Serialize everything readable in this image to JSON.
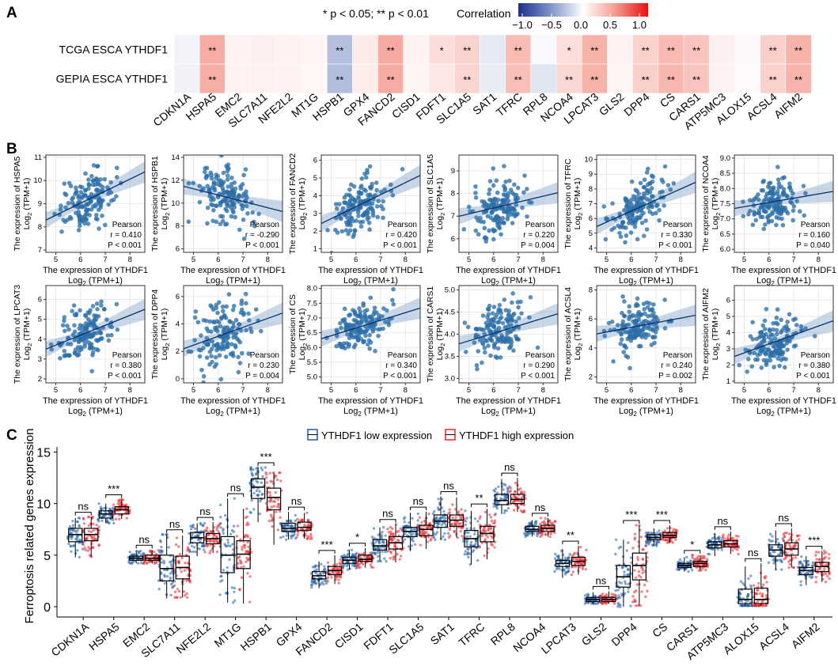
{
  "panel_labels": [
    "A",
    "B",
    "C"
  ],
  "chart_data": [
    {
      "type": "heatmap",
      "panel": "A",
      "legend_note": "* p < 0.05; ** p < 0.01",
      "colorbar_title": "Correlation",
      "colorbar_ticks": [
        "−1.0",
        "−0.5",
        "0.0",
        "0.5",
        "1.0"
      ],
      "colorbar_range": [
        -1,
        1
      ],
      "rows": [
        "TCGA ESCA YTHDF1",
        "GEPIA ESCA YTHDF1"
      ],
      "columns": [
        "CDKN1A",
        "HSPA5",
        "EMC2",
        "SLC7A11",
        "NFE2L2",
        "MT1G",
        "HSPB1",
        "GPX4",
        "FANCD2",
        "CISD1",
        "FDFT1",
        "SLC1A5",
        "SAT1",
        "TFRC",
        "RPL8",
        "NCOA4",
        "LPCAT3",
        "GLS2",
        "DPP4",
        "CS",
        "CARS1",
        "ATP5MC3",
        "ALOX15",
        "ACSL4",
        "AIFM2"
      ],
      "values": [
        [
          -0.05,
          0.41,
          0.06,
          0.08,
          0.07,
          0.05,
          -0.29,
          0.1,
          0.42,
          0.06,
          0.17,
          0.22,
          -0.1,
          0.33,
          -0.03,
          0.16,
          0.38,
          0.06,
          0.23,
          0.34,
          0.29,
          0.08,
          0.03,
          0.24,
          0.38
        ],
        [
          -0.06,
          0.4,
          0.06,
          0.07,
          0.06,
          0.04,
          -0.3,
          0.09,
          0.41,
          0.05,
          0.12,
          0.21,
          -0.09,
          0.32,
          -0.12,
          0.2,
          0.38,
          0.05,
          0.24,
          0.35,
          0.29,
          0.07,
          0.02,
          0.23,
          0.37
        ]
      ],
      "significance": [
        [
          "",
          "**",
          "",
          "",
          "",
          "",
          "**",
          "",
          "**",
          "",
          "*",
          "**",
          "",
          "**",
          "",
          "*",
          "**",
          "",
          "**",
          "**",
          "**",
          "",
          "",
          "**",
          "**"
        ],
        [
          "",
          "**",
          "",
          "",
          "",
          "",
          "**",
          "",
          "**",
          "",
          "",
          "**",
          "",
          "**",
          "",
          "**",
          "**",
          "",
          "**",
          "**",
          "**",
          "",
          "",
          "**",
          "**"
        ]
      ]
    },
    {
      "type": "scatter",
      "panel": "B",
      "x_title": "The expression of YTHDF1",
      "x_unit_sub": "2",
      "x_unit_pre": "Log",
      "x_unit_post": " (TPM+1)",
      "y_title_prefix": "The expression of ",
      "y_unit_pre": "Log",
      "y_unit_sub": "2",
      "y_unit_post": " (TPM+1)",
      "method_label": "Pearson",
      "xlim": [
        4.6,
        8.6
      ],
      "xticks": [
        "5",
        "6",
        "7",
        "8"
      ],
      "plots": [
        {
          "gene": "HSPA5",
          "ylim": [
            6.9,
            11.1
          ],
          "yticks": [
            "7",
            "8",
            "9",
            "10",
            "11"
          ],
          "r": "r = 0.410",
          "p": "P < 0.001",
          "intercept": 5.9,
          "slope": 0.52,
          "ymean": 9.1,
          "ysd": 0.7
        },
        {
          "gene": "HSPB1",
          "ylim": [
            5.7,
            14.2
          ],
          "yticks": [
            "6",
            "8",
            "10",
            "12",
            "14"
          ],
          "r": "r = -0.290",
          "p": "P < 0.001",
          "intercept": 14.0,
          "slope": -0.55,
          "ymean": 10.6,
          "ysd": 1.4
        },
        {
          "gene": "FANCD2",
          "ylim": [
            0.8,
            6.3
          ],
          "yticks": [
            "1",
            "2",
            "3",
            "4",
            "5",
            "6"
          ],
          "r": "r = 0.420",
          "p": "P < 0.001",
          "intercept": -0.7,
          "slope": 0.68,
          "ymean": 3.4,
          "ysd": 0.9
        },
        {
          "gene": "SLC1A5",
          "ylim": [
            5.4,
            9.7
          ],
          "yticks": [
            "6",
            "7",
            "8",
            "9"
          ],
          "r": "r = 0.220",
          "p": "P = 0.004",
          "intercept": 5.8,
          "slope": 0.26,
          "ymean": 7.4,
          "ysd": 0.7
        },
        {
          "gene": "TFRC",
          "ylim": [
            3.7,
            10.3
          ],
          "yticks": [
            "4",
            "5",
            "6",
            "7",
            "8",
            "9",
            "10"
          ],
          "r": "r = 0.330",
          "p": "P < 0.001",
          "intercept": 2.0,
          "slope": 0.75,
          "ymean": 6.7,
          "ysd": 1.1
        },
        {
          "gene": "NCOA4",
          "ylim": [
            5.9,
            9.1
          ],
          "yticks": [
            "6.0",
            "6.5",
            "7.0",
            "7.5",
            "8.0",
            "8.5",
            "9.0"
          ],
          "r": "r = 0.160",
          "p": "P = 0.040",
          "intercept": 6.7,
          "slope": 0.14,
          "ymean": 7.55,
          "ysd": 0.45
        },
        {
          "gene": "LPCAT3",
          "ylim": [
            1.8,
            6.7
          ],
          "yticks": [
            "2",
            "3",
            "4",
            "5",
            "6"
          ],
          "r": "r = 0.380",
          "p": "P < 0.001",
          "intercept": 1.2,
          "slope": 0.5,
          "ymean": 4.3,
          "ysd": 0.8
        },
        {
          "gene": "DPP4",
          "ylim": [
            -0.3,
            6.8
          ],
          "yticks": [
            "0",
            "2",
            "4",
            "6"
          ],
          "r": "r = 0.230",
          "p": "P = 0.004",
          "intercept": -0.8,
          "slope": 0.65,
          "ymean": 3.2,
          "ysd": 1.5
        },
        {
          "gene": "CS",
          "ylim": [
            4.8,
            8.1
          ],
          "yticks": [
            "5.0",
            "5.5",
            "6.0",
            "6.5",
            "7.0",
            "7.5",
            "8.0"
          ],
          "r": "r = 0.340",
          "p": "P < 0.001",
          "intercept": 5.1,
          "slope": 0.26,
          "ymean": 6.7,
          "ysd": 0.45
        },
        {
          "gene": "CARS1",
          "ylim": [
            2.9,
            5.1
          ],
          "yticks": [
            "3.0",
            "3.5",
            "4.0",
            "4.5",
            "5.0"
          ],
          "r": "r = 0.290",
          "p": "P < 0.001",
          "intercept": 3.0,
          "slope": 0.17,
          "ymean": 4.05,
          "ysd": 0.35
        },
        {
          "gene": "ACSL4",
          "ylim": [
            1.6,
            8.3
          ],
          "yticks": [
            "2",
            "4",
            "6",
            "8"
          ],
          "r": "r = 0.240",
          "p": "P = 0.002",
          "intercept": 3.5,
          "slope": 0.32,
          "ymean": 5.5,
          "ysd": 1.0
        },
        {
          "gene": "AIFM2",
          "ylim": [
            0.9,
            6.9
          ],
          "yticks": [
            "1",
            "2",
            "3",
            "4",
            "5",
            "6"
          ],
          "r": "r = 0.380",
          "p": "P < 0.001",
          "intercept": 0.0,
          "slope": 0.55,
          "ymean": 3.4,
          "ysd": 0.9
        }
      ]
    },
    {
      "type": "box",
      "panel": "C",
      "ylabel": "Ferroptosis related genes expression",
      "ylim": [
        -1,
        15.5
      ],
      "yticks": [
        "0",
        "5",
        "10",
        "15"
      ],
      "legend": [
        "YTHDF1 low expression",
        "YTHDF1 high expression"
      ],
      "series_colors": [
        "#1f5fa5",
        "#e8242a"
      ],
      "categories": [
        "CDKN1A",
        "HSPA5",
        "EMC2",
        "SLC7A11",
        "NFE2L2",
        "MT1G",
        "HSPB1",
        "GPX4",
        "FANCD2",
        "CISD1",
        "FDFT1",
        "SLC1A5",
        "SAT1",
        "TFRC",
        "RPL8",
        "NCOA4",
        "LPCAT3",
        "GLS2",
        "DPP4",
        "CS",
        "CARS1",
        "ATP5MC3",
        "ALOX15",
        "ACSL4",
        "AIFM2"
      ],
      "significance": [
        "ns",
        "***",
        "ns",
        "ns",
        "ns",
        "ns",
        "***",
        "ns",
        "***",
        "*",
        "ns",
        "ns",
        "ns",
        "**",
        "ns",
        "ns",
        "**",
        "ns",
        "***",
        "***",
        "*",
        "ns",
        "ns",
        "ns",
        "***"
      ],
      "low": [
        [
          4.8,
          6.3,
          7.0,
          7.6,
          8.6
        ],
        [
          8.1,
          8.6,
          9.0,
          9.3,
          10.0
        ],
        [
          4.2,
          4.5,
          4.7,
          4.9,
          5.4
        ],
        [
          0.8,
          2.5,
          3.7,
          5.0,
          7.0
        ],
        [
          4.9,
          6.2,
          6.7,
          7.2,
          8.1
        ],
        [
          0.4,
          3.3,
          5.0,
          6.8,
          10.5
        ],
        [
          8.2,
          10.5,
          11.6,
          12.4,
          13.5
        ],
        [
          6.5,
          7.3,
          7.6,
          8.1,
          9.2
        ],
        [
          1.8,
          2.7,
          3.0,
          3.4,
          4.4
        ],
        [
          3.6,
          4.2,
          4.5,
          4.8,
          5.5
        ],
        [
          4.4,
          5.5,
          5.9,
          6.5,
          7.7
        ],
        [
          5.4,
          6.8,
          7.3,
          7.7,
          9.1
        ],
        [
          6.5,
          7.7,
          8.3,
          8.9,
          10.7
        ],
        [
          4.1,
          5.8,
          6.6,
          7.4,
          9.3
        ],
        [
          9.0,
          9.9,
          10.3,
          10.9,
          12.4
        ],
        [
          6.8,
          7.3,
          7.5,
          7.8,
          8.4
        ],
        [
          2.8,
          3.9,
          4.2,
          4.5,
          5.6
        ],
        [
          0.3,
          0.5,
          0.7,
          0.9,
          1.4
        ],
        [
          0.0,
          1.9,
          2.9,
          4.0,
          6.5
        ],
        [
          5.9,
          6.5,
          6.7,
          7.0,
          7.6
        ],
        [
          3.4,
          3.8,
          4.0,
          4.2,
          4.8
        ],
        [
          4.9,
          5.7,
          6.0,
          6.3,
          7.1
        ],
        [
          0.1,
          0.3,
          0.7,
          1.7,
          3.9
        ],
        [
          3.6,
          4.9,
          5.5,
          6.0,
          7.4
        ],
        [
          2.1,
          3.1,
          3.5,
          3.8,
          4.9
        ]
      ],
      "high": [
        [
          4.8,
          6.4,
          7.0,
          7.6,
          8.7
        ],
        [
          8.5,
          9.0,
          9.4,
          9.7,
          10.4
        ],
        [
          4.2,
          4.5,
          4.7,
          5.0,
          5.5
        ],
        [
          0.9,
          2.7,
          3.8,
          4.9,
          6.9
        ],
        [
          5.2,
          6.1,
          6.6,
          7.1,
          8.2
        ],
        [
          0.3,
          3.7,
          5.1,
          6.4,
          9.5
        ],
        [
          6.0,
          9.4,
          10.6,
          11.5,
          13.0
        ],
        [
          6.6,
          7.4,
          7.7,
          8.2,
          9.1
        ],
        [
          2.2,
          3.1,
          3.5,
          3.9,
          5.0
        ],
        [
          3.8,
          4.4,
          4.6,
          5.0,
          5.7
        ],
        [
          4.3,
          5.6,
          6.2,
          6.8,
          8.0
        ],
        [
          5.6,
          6.9,
          7.5,
          7.9,
          9.2
        ],
        [
          6.7,
          7.8,
          8.4,
          8.9,
          10.6
        ],
        [
          4.6,
          6.3,
          7.1,
          7.8,
          9.5
        ],
        [
          9.2,
          10.0,
          10.4,
          10.9,
          12.5
        ],
        [
          6.8,
          7.3,
          7.6,
          7.9,
          8.6
        ],
        [
          3.1,
          4.0,
          4.4,
          4.8,
          5.9
        ],
        [
          0.3,
          0.5,
          0.7,
          0.9,
          1.5
        ],
        [
          0.1,
          2.6,
          4.0,
          5.2,
          7.9
        ],
        [
          6.2,
          6.7,
          6.9,
          7.2,
          7.9
        ],
        [
          3.5,
          3.9,
          4.2,
          4.4,
          5.0
        ],
        [
          5.1,
          5.8,
          6.1,
          6.4,
          7.3
        ],
        [
          0.1,
          0.3,
          0.7,
          1.8,
          4.2
        ],
        [
          3.8,
          5.0,
          5.6,
          6.2,
          7.6
        ],
        [
          2.4,
          3.4,
          3.9,
          4.3,
          5.4
        ]
      ]
    }
  ]
}
